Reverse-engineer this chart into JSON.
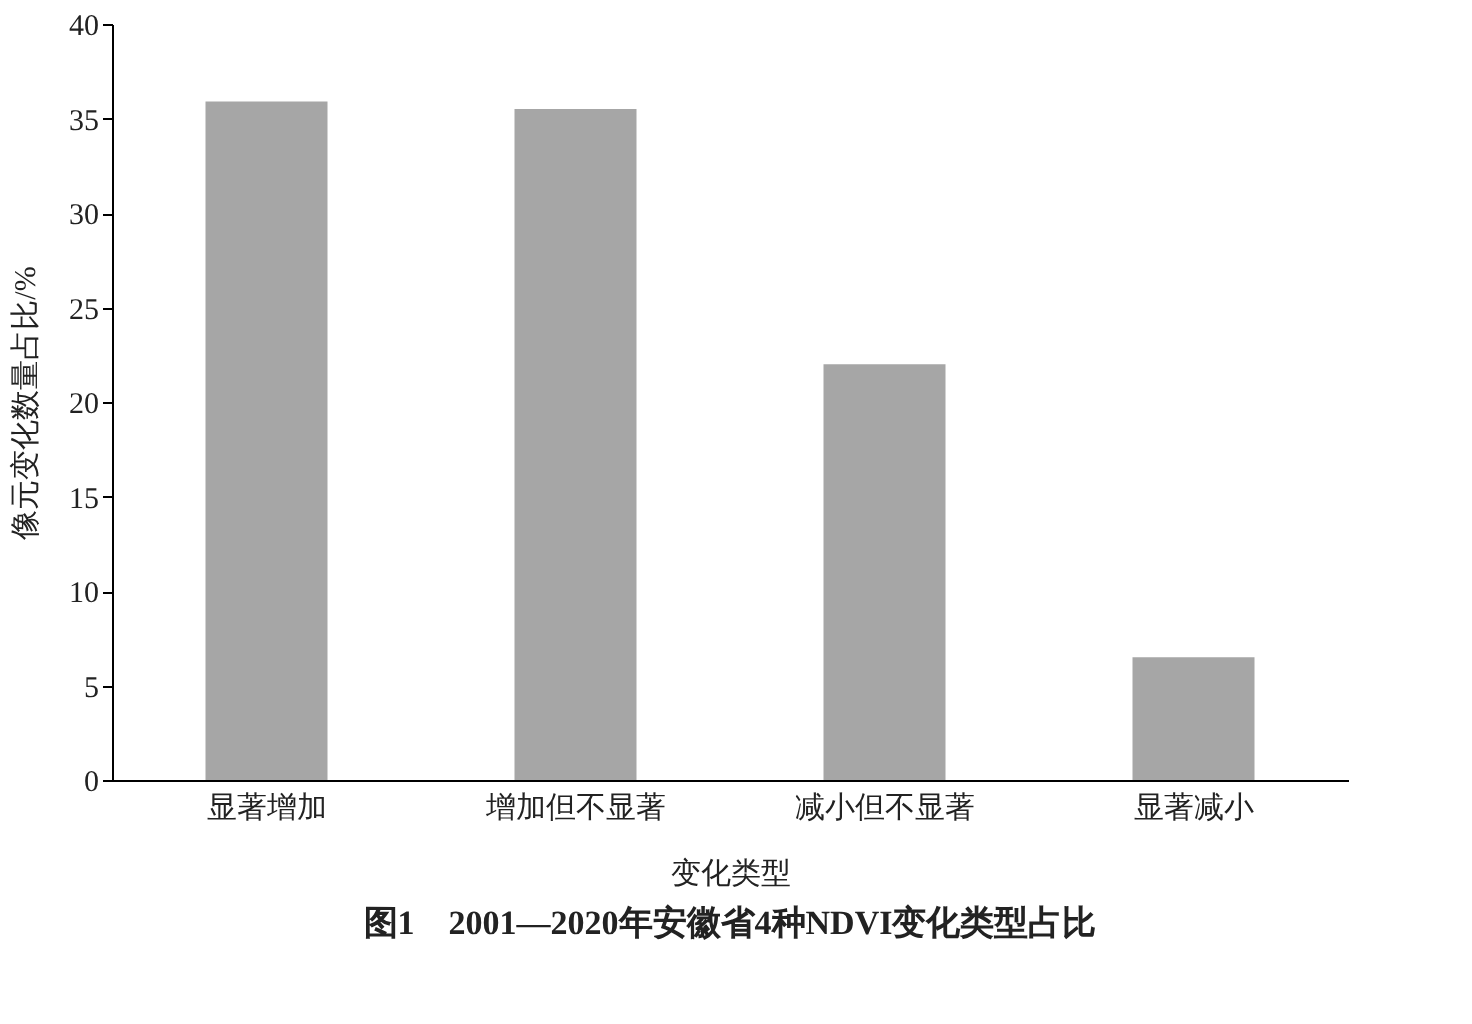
{
  "chart_data": {
    "type": "bar",
    "title": "图1　2001—2020年安徽省4种NDVI变化类型占比",
    "xlabel": "变化类型",
    "ylabel": "像元变化数量占比/%",
    "categories": [
      "显著增加",
      "增加但不显著",
      "减小但不显著",
      "显著减小"
    ],
    "values": [
      35.9,
      35.5,
      22.0,
      6.5
    ],
    "color": "#a6a6a6",
    "ylim": [
      0,
      40
    ],
    "yticks": [
      0,
      5,
      10,
      15,
      20,
      25,
      30,
      35,
      40
    ],
    "grid": false
  }
}
